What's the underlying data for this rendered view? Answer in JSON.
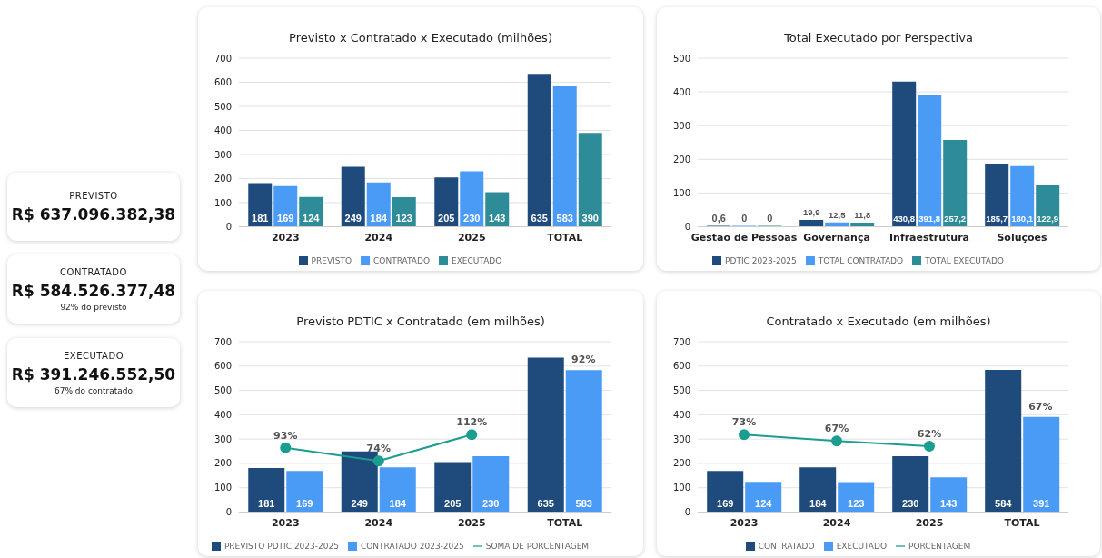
{
  "chart_data": [
    {
      "type": "other",
      "title": "PREVISTO",
      "subtitle": "R$ 637.096.382,38"
    },
    {
      "type": "other",
      "title": "CONTRATADO",
      "subtitle": "R$ 584.526.377,48",
      "annotations": [
        "92% do previsto"
      ]
    },
    {
      "type": "other",
      "title": "EXECUTADO",
      "subtitle": "R$ 391.246.552,50",
      "annotations": [
        "67% do contratado"
      ]
    },
    {
      "type": "bar",
      "title": "Previsto x Contratado x Executado (milhões)",
      "categories": [
        "2023",
        "2024",
        "2025",
        "TOTAL"
      ],
      "series": [
        {
          "name": "PREVISTO",
          "color": "#1f4a7c",
          "values": [
            181,
            249,
            205,
            635
          ]
        },
        {
          "name": "CONTRATADO",
          "color": "#4a9bf5",
          "values": [
            169,
            184,
            230,
            583
          ]
        },
        {
          "name": "EXECUTADO",
          "color": "#2e8c99",
          "values": [
            124,
            123,
            143,
            390
          ]
        }
      ],
      "ylim": [
        0,
        700
      ],
      "yticks": [
        0,
        100,
        200,
        300,
        400,
        500,
        600,
        700
      ],
      "grid": "y",
      "legend": "bottom",
      "data_labels": true
    },
    {
      "type": "bar",
      "title": "Total Executado por Perspectiva",
      "categories": [
        "Gestão de Pessoas",
        "Governança",
        "Infraestrutura",
        "Soluções"
      ],
      "series": [
        {
          "name": "PDTIC 2023-2025",
          "color": "#1f4a7c",
          "values": [
            0.6,
            19.9,
            430.8,
            185.7
          ],
          "value_labels": [
            "0,6",
            "19,9",
            "430,8",
            "185,7"
          ]
        },
        {
          "name": "TOTAL CONTRATADO",
          "color": "#4a9bf5",
          "values": [
            0,
            12.5,
            391.8,
            180.1
          ],
          "value_labels": [
            "0",
            "12,5",
            "391,8",
            "180,1"
          ]
        },
        {
          "name": "TOTAL EXECUTADO",
          "color": "#2e8c99",
          "values": [
            0,
            11.8,
            257.2,
            122.9
          ],
          "value_labels": [
            "0",
            "11,8",
            "257,2",
            "122,9"
          ]
        }
      ],
      "ylim": [
        0,
        500
      ],
      "yticks": [
        0,
        100,
        200,
        300,
        400,
        500
      ],
      "grid": "y",
      "legend": "bottom"
    },
    {
      "type": "bar",
      "title": "Previsto PDTIC x Contratado (em milhões)",
      "categories": [
        "2023",
        "2024",
        "2025",
        "TOTAL"
      ],
      "series": [
        {
          "name": "PREVISTO PDTIC 2023-2025",
          "color": "#1f4a7c",
          "values": [
            181,
            249,
            205,
            635
          ]
        },
        {
          "name": "CONTRATADO 2023-2025",
          "color": "#4a9bf5",
          "values": [
            169,
            184,
            230,
            583
          ]
        },
        {
          "name": "SOMA DE PORCENTAGEM",
          "type": "line",
          "axis": "y2",
          "color": "#1a9e8f",
          "values": [
            93,
            74,
            112,
            null
          ],
          "value_labels": [
            "93%",
            "74%",
            "112%",
            null
          ]
        }
      ],
      "ylim": [
        0,
        700
      ],
      "yticks": [
        0,
        100,
        200,
        300,
        400,
        500,
        600,
        700
      ],
      "grid": "y",
      "legend": "bottom",
      "data_labels": true,
      "marker": "circle",
      "annotations": [
        {
          "text": "92%",
          "x": "TOTAL",
          "y": 583
        }
      ]
    },
    {
      "type": "bar",
      "title": "Contratado x Executado (em milhões)",
      "categories": [
        "2023",
        "2024",
        "2025",
        "TOTAL"
      ],
      "series": [
        {
          "name": "CONTRATADO",
          "color": "#1f4a7c",
          "values": [
            169,
            184,
            230,
            584
          ]
        },
        {
          "name": "EXECUTADO",
          "color": "#4a9bf5",
          "values": [
            124,
            123,
            143,
            391
          ]
        },
        {
          "name": "PORCENTAGEM",
          "type": "line",
          "axis": "y2",
          "color": "#1a9e8f",
          "values": [
            73,
            67,
            62,
            null
          ],
          "value_labels": [
            "73%",
            "67%",
            "62%",
            null
          ]
        }
      ],
      "ylim": [
        0,
        700
      ],
      "yticks": [
        0,
        100,
        200,
        300,
        400,
        500,
        600,
        700
      ],
      "grid": "y",
      "legend": "bottom",
      "data_labels": true,
      "marker": "circle",
      "annotations": [
        {
          "text": "67%",
          "x": "TOTAL",
          "y": 391
        }
      ]
    }
  ]
}
